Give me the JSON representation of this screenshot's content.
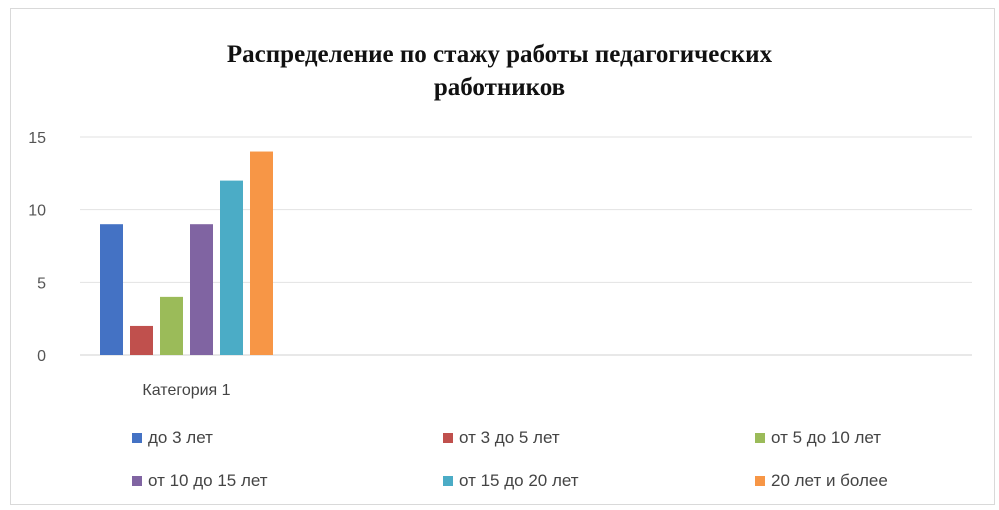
{
  "chart_data": {
    "type": "bar",
    "title": "Распределение по стажу работы педагогических работников",
    "title_lines": [
      "Распределение по стажу работы педагогических",
      "работников"
    ],
    "categories": [
      "Категория 1"
    ],
    "series": [
      {
        "name": "до 3 лет",
        "values": [
          9
        ],
        "color": "#4472c4"
      },
      {
        "name": "от 3 до 5 лет",
        "values": [
          2
        ],
        "color": "#c0504d"
      },
      {
        "name": "от 5 до 10 лет",
        "values": [
          4
        ],
        "color": "#9bbb59"
      },
      {
        "name": "от 10 до 15 лет",
        "values": [
          9
        ],
        "color": "#8064a2"
      },
      {
        "name": "от 15 до 20 лет",
        "values": [
          12
        ],
        "color": "#4bacc6"
      },
      {
        "name": "20 лет и более",
        "values": [
          14
        ],
        "color": "#f79646"
      }
    ],
    "ylim": [
      0,
      15
    ],
    "yticks": [
      0,
      5,
      10,
      15
    ],
    "xlabel": "",
    "ylabel": "",
    "grid": true,
    "legend_position": "bottom"
  }
}
